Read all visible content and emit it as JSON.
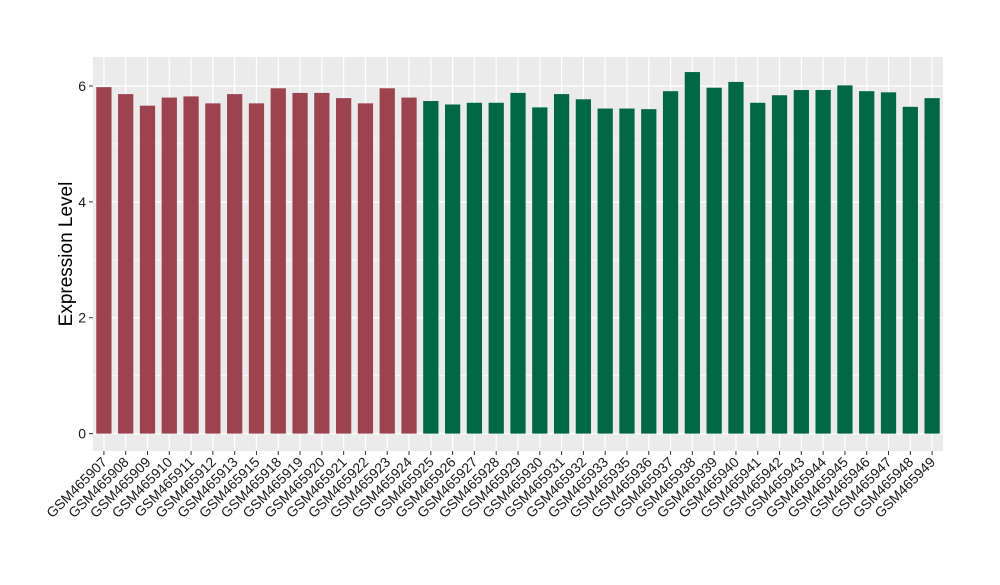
{
  "chart_data": {
    "type": "bar",
    "title": "",
    "xlabel": "",
    "ylabel": "Expression Level",
    "ylim": [
      -0.3,
      6.5
    ],
    "yticks": [
      0,
      2,
      4,
      6
    ],
    "grid": true,
    "legend": "none",
    "panel_background": "#ebebeb",
    "grid_color": "#ffffff",
    "group_colors": [
      "#9b4450",
      "#006845"
    ],
    "categories": [
      "GSM465907",
      "GSM465908",
      "GSM465909",
      "GSM465910",
      "GSM465911",
      "GSM465912",
      "GSM465913",
      "GSM465915",
      "GSM465918",
      "GSM465919",
      "GSM465920",
      "GSM465921",
      "GSM465922",
      "GSM465923",
      "GSM465924",
      "GSM465925",
      "GSM465926",
      "GSM465927",
      "GSM465928",
      "GSM465929",
      "GSM465930",
      "GSM465931",
      "GSM465932",
      "GSM465933",
      "GSM465935",
      "GSM465936",
      "GSM465937",
      "GSM465938",
      "GSM465939",
      "GSM465940",
      "GSM465941",
      "GSM465942",
      "GSM465943",
      "GSM465944",
      "GSM465945",
      "GSM465946",
      "GSM465947",
      "GSM465948",
      "GSM465949"
    ],
    "values": [
      5.98,
      5.86,
      5.66,
      5.8,
      5.82,
      5.7,
      5.86,
      5.7,
      5.96,
      5.88,
      5.88,
      5.79,
      5.7,
      5.96,
      5.8,
      5.74,
      5.68,
      5.71,
      5.71,
      5.88,
      5.63,
      5.86,
      5.77,
      5.61,
      5.61,
      5.6,
      5.91,
      6.24,
      5.97,
      6.07,
      5.71,
      5.84,
      5.93,
      5.93,
      6.01,
      5.91,
      5.89,
      5.64,
      5.79
    ],
    "groups": [
      0,
      0,
      0,
      0,
      0,
      0,
      0,
      0,
      0,
      0,
      0,
      0,
      0,
      0,
      0,
      1,
      1,
      1,
      1,
      1,
      1,
      1,
      1,
      1,
      1,
      1,
      1,
      1,
      1,
      1,
      1,
      1,
      1,
      1,
      1,
      1,
      1,
      1,
      1
    ]
  }
}
